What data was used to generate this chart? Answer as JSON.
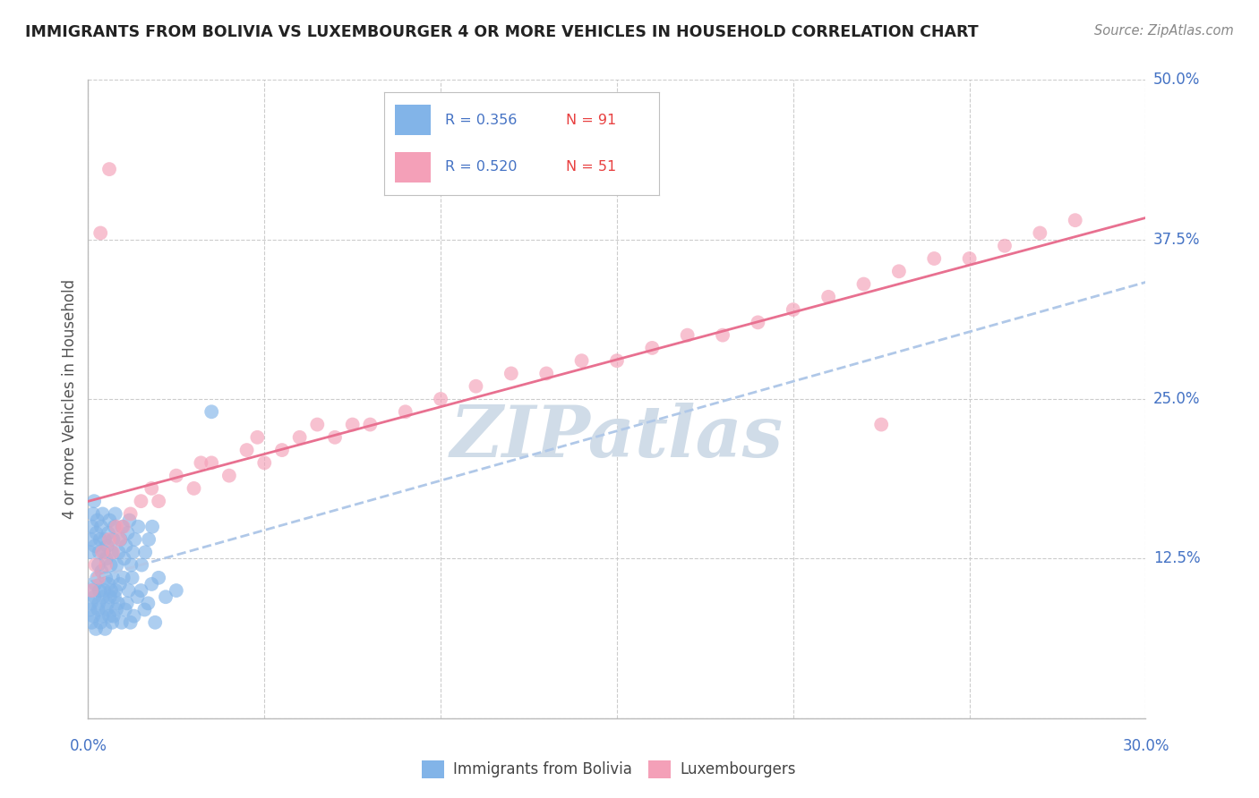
{
  "title": "IMMIGRANTS FROM BOLIVIA VS LUXEMBOURGER 4 OR MORE VEHICLES IN HOUSEHOLD CORRELATION CHART",
  "source_text": "Source: ZipAtlas.com",
  "ylabel": "4 or more Vehicles in Household",
  "xlim": [
    0.0,
    30.0
  ],
  "ylim": [
    0.0,
    50.0
  ],
  "yticks": [
    0.0,
    12.5,
    25.0,
    37.5,
    50.0
  ],
  "xticks": [
    0.0,
    5.0,
    10.0,
    15.0,
    20.0,
    25.0,
    30.0
  ],
  "bolivia_color": "#82b4e8",
  "lux_color": "#f4a0b8",
  "bolivia_trend_color": "#b0c8e8",
  "lux_trend_color": "#e87090",
  "bolivia_R": 0.356,
  "bolivia_N": 91,
  "lux_R": 0.52,
  "lux_N": 51,
  "legend_R_color": "#4472c4",
  "legend_N_color": "#e84040",
  "watermark": "ZIPatlas",
  "watermark_color": "#d0dce8",
  "background_color": "#ffffff",
  "grid_color": "#cccccc",
  "bolivia_label": "Immigrants from Bolivia",
  "lux_label": "Luxembourgers",
  "bolivia_x": [
    0.05,
    0.08,
    0.1,
    0.12,
    0.15,
    0.18,
    0.2,
    0.22,
    0.25,
    0.28,
    0.3,
    0.32,
    0.35,
    0.38,
    0.4,
    0.42,
    0.45,
    0.48,
    0.5,
    0.52,
    0.55,
    0.58,
    0.6,
    0.62,
    0.65,
    0.68,
    0.7,
    0.72,
    0.75,
    0.78,
    0.8,
    0.85,
    0.9,
    0.95,
    1.0,
    1.05,
    1.1,
    1.15,
    1.2,
    1.25,
    1.3,
    1.4,
    1.5,
    1.6,
    1.7,
    1.8,
    1.9,
    2.0,
    2.2,
    2.5,
    0.06,
    0.09,
    0.11,
    0.14,
    0.17,
    0.19,
    0.23,
    0.26,
    0.29,
    0.31,
    0.34,
    0.37,
    0.41,
    0.44,
    0.47,
    0.51,
    0.54,
    0.57,
    0.61,
    0.64,
    0.67,
    0.71,
    0.74,
    0.77,
    0.82,
    0.87,
    0.92,
    0.97,
    1.02,
    1.07,
    1.12,
    1.17,
    1.22,
    1.27,
    1.32,
    1.42,
    1.52,
    1.62,
    1.72,
    1.82,
    3.5
  ],
  "bolivia_y": [
    8.5,
    9.0,
    7.5,
    10.0,
    8.0,
    9.5,
    10.5,
    7.0,
    11.0,
    8.5,
    9.0,
    10.0,
    7.5,
    11.5,
    8.0,
    9.5,
    10.0,
    7.0,
    11.0,
    8.5,
    9.0,
    10.5,
    8.0,
    9.5,
    10.0,
    7.5,
    11.0,
    8.0,
    9.5,
    10.0,
    8.5,
    9.0,
    10.5,
    7.5,
    11.0,
    8.5,
    9.0,
    10.0,
    7.5,
    11.0,
    8.0,
    9.5,
    10.0,
    8.5,
    9.0,
    10.5,
    7.5,
    11.0,
    9.5,
    10.0,
    13.0,
    14.0,
    15.0,
    16.0,
    17.0,
    13.5,
    14.5,
    15.5,
    12.0,
    13.0,
    14.0,
    15.0,
    16.0,
    13.0,
    14.0,
    12.5,
    13.5,
    14.5,
    15.5,
    12.0,
    13.0,
    14.0,
    15.0,
    16.0,
    12.0,
    13.0,
    14.0,
    15.0,
    12.5,
    13.5,
    14.5,
    15.5,
    12.0,
    13.0,
    14.0,
    15.0,
    12.0,
    13.0,
    14.0,
    15.0,
    24.0
  ],
  "lux_x": [
    0.1,
    0.2,
    0.3,
    0.4,
    0.5,
    0.6,
    0.7,
    0.8,
    0.9,
    1.0,
    1.2,
    1.5,
    1.8,
    2.0,
    2.5,
    3.0,
    3.5,
    4.0,
    4.5,
    5.0,
    5.5,
    6.0,
    6.5,
    7.0,
    8.0,
    9.0,
    10.0,
    11.0,
    12.0,
    13.0,
    14.0,
    15.0,
    16.0,
    17.0,
    18.0,
    19.0,
    20.0,
    21.0,
    22.0,
    23.0,
    24.0,
    25.0,
    26.0,
    27.0,
    28.0,
    3.2,
    4.8,
    7.5,
    0.35,
    0.6,
    22.5
  ],
  "lux_y": [
    10.0,
    12.0,
    11.0,
    13.0,
    12.0,
    14.0,
    13.0,
    15.0,
    14.0,
    15.0,
    16.0,
    17.0,
    18.0,
    17.0,
    19.0,
    18.0,
    20.0,
    19.0,
    21.0,
    20.0,
    21.0,
    22.0,
    23.0,
    22.0,
    23.0,
    24.0,
    25.0,
    26.0,
    27.0,
    27.0,
    28.0,
    28.0,
    29.0,
    30.0,
    30.0,
    31.0,
    32.0,
    33.0,
    34.0,
    35.0,
    36.0,
    36.0,
    37.0,
    38.0,
    39.0,
    20.0,
    22.0,
    23.0,
    38.0,
    43.0,
    23.0
  ]
}
